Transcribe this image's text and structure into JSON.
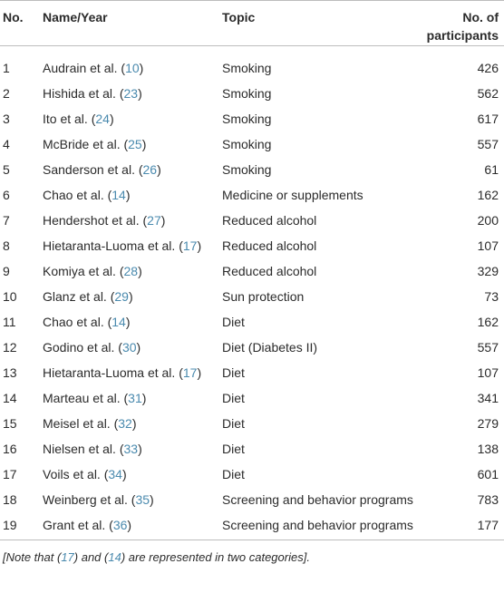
{
  "table": {
    "headers": {
      "no": "No.",
      "name": "Name/Year",
      "topic": "Topic",
      "participants_line1": "No. of",
      "participants_line2": "participants"
    },
    "rows": [
      {
        "no": "1",
        "name": "Audrain et al. (",
        "ref": "10",
        "topic": "Smoking",
        "participants": "426"
      },
      {
        "no": "2",
        "name": "Hishida et al. (",
        "ref": "23",
        "topic": "Smoking",
        "participants": "562"
      },
      {
        "no": "3",
        "name": "Ito et al. (",
        "ref": "24",
        "topic": "Smoking",
        "participants": "617"
      },
      {
        "no": "4",
        "name": "McBride et al. (",
        "ref": "25",
        "topic": "Smoking",
        "participants": "557"
      },
      {
        "no": "5",
        "name": "Sanderson et al. (",
        "ref": "26",
        "topic": "Smoking",
        "participants": "61"
      },
      {
        "no": "6",
        "name": "Chao et al. (",
        "ref": "14",
        "topic": "Medicine or supplements",
        "participants": "162"
      },
      {
        "no": "7",
        "name": "Hendershot et al. (",
        "ref": "27",
        "topic": "Reduced alcohol",
        "participants": "200"
      },
      {
        "no": "8",
        "name": "Hietaranta-Luoma et al. (",
        "ref": "17",
        "topic": "Reduced alcohol",
        "participants": "107"
      },
      {
        "no": "9",
        "name": "Komiya et al. (",
        "ref": "28",
        "topic": "Reduced alcohol",
        "participants": "329"
      },
      {
        "no": "10",
        "name": "Glanz et al. (",
        "ref": "29",
        "topic": "Sun protection",
        "participants": "73"
      },
      {
        "no": "11",
        "name": "Chao et al. (",
        "ref": "14",
        "topic": "Diet",
        "participants": "162"
      },
      {
        "no": "12",
        "name": "Godino et al. (",
        "ref": "30",
        "topic": "Diet (Diabetes II)",
        "participants": "557"
      },
      {
        "no": "13",
        "name": "Hietaranta-Luoma et al. (",
        "ref": "17",
        "topic": "Diet",
        "participants": "107"
      },
      {
        "no": "14",
        "name": "Marteau et al. (",
        "ref": "31",
        "topic": "Diet",
        "participants": "341"
      },
      {
        "no": "15",
        "name": "Meisel et al. (",
        "ref": "32",
        "topic": "Diet",
        "participants": "279"
      },
      {
        "no": "16",
        "name": "Nielsen et al. (",
        "ref": "33",
        "topic": "Diet",
        "participants": "138"
      },
      {
        "no": "17",
        "name": "Voils et al. (",
        "ref": "34",
        "topic": "Diet",
        "participants": "601"
      },
      {
        "no": "18",
        "name": "Weinberg et al. (",
        "ref": "35",
        "topic": "Screening and behavior programs",
        "participants": "783"
      },
      {
        "no": "19",
        "name": "Grant et al. (",
        "ref": "36",
        "topic": "Screening and behavior programs",
        "participants": "177"
      }
    ],
    "close_paren": ")",
    "note": {
      "prefix": "[Note that (",
      "ref_a": "17",
      "middle": ") and (",
      "ref_b": "14",
      "suffix": ") are represented in two categories]."
    }
  }
}
